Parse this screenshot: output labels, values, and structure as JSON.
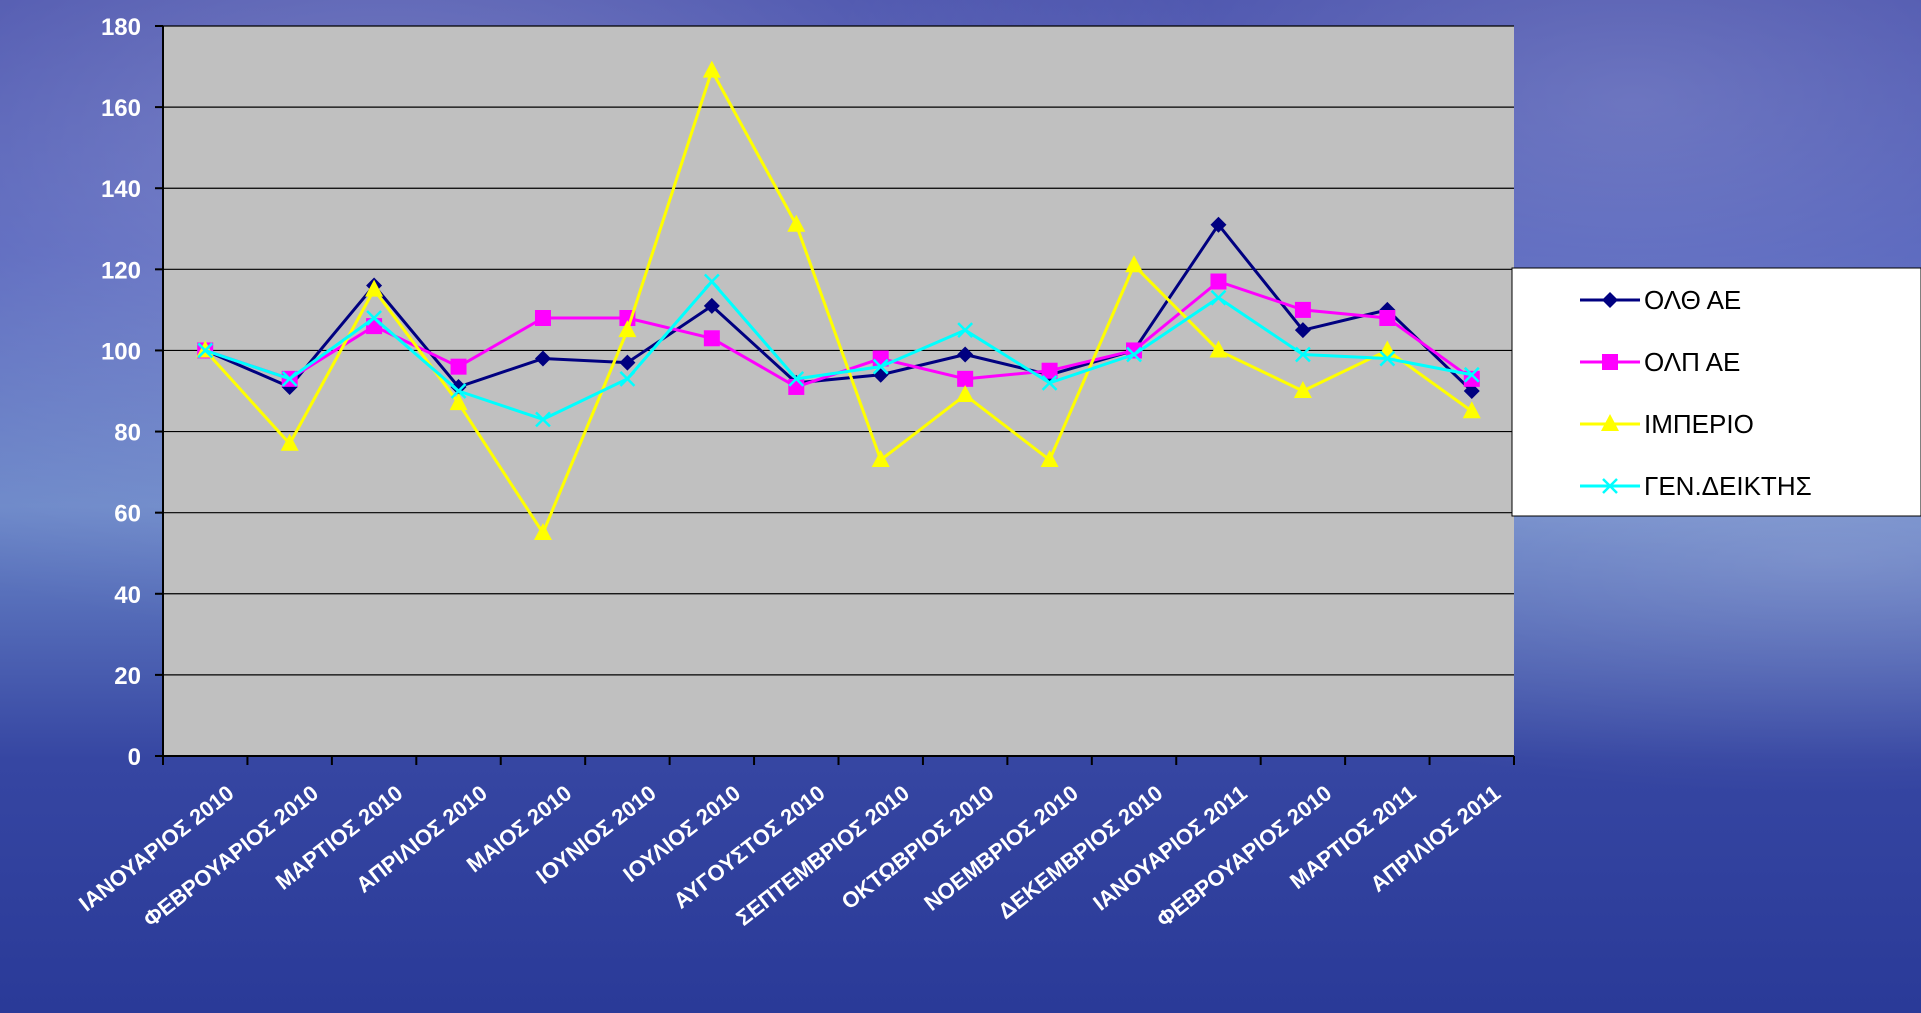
{
  "chart_data": {
    "type": "line",
    "title": "",
    "xlabel": "",
    "ylabel": "",
    "ylim": [
      0,
      180
    ],
    "yticks": [
      0,
      20,
      40,
      60,
      80,
      100,
      120,
      140,
      160,
      180
    ],
    "grid": true,
    "legend_position": "right",
    "categories": [
      "ΙΑΝΟΥΑΡΙΟΣ 2010",
      "ΦΕΒΡΟΥΑΡΙΟΣ 2010",
      "ΜΑΡΤΙΟΣ 2010",
      "ΑΠΡΙΛΙΟΣ 2010",
      "ΜΑΙΟΣ 2010",
      "ΙΟΥΝΙΟΣ 2010",
      "ΙΟΥΛΙΟΣ 2010",
      "ΑΥΓΟΥΣΤΟΣ 2010",
      "ΣΕΠΤΕΜΒΡΙΟΣ 2010",
      "ΟΚΤΩΒΡΙΟΣ 2010",
      "ΝΟΕΜΒΡΙΟΣ 2010",
      "ΔΕΚΕΜΒΡΙΟΣ 2010",
      "ΙΑΝΟΥΑΡΙΟΣ 2011",
      "ΦΕΒΡΟΥΑΡΙΟΣ 2010",
      "ΜΑΡΤΙΟΣ 2011",
      "ΑΠΡΙΛΙΟΣ 2011"
    ],
    "series": [
      {
        "name": "ΟΛΘ ΑΕ",
        "color": "#000080",
        "marker": "diamond",
        "values": [
          100,
          91,
          116,
          91,
          98,
          97,
          111,
          92,
          94,
          99,
          94,
          100,
          131,
          105,
          110,
          90
        ]
      },
      {
        "name": "ΟΛΠ ΑΕ",
        "color": "#ff00ff",
        "marker": "square",
        "values": [
          100,
          93,
          106,
          96,
          108,
          108,
          103,
          91,
          98,
          93,
          95,
          100,
          117,
          110,
          108,
          93
        ]
      },
      {
        "name": "ΙΜΠΕΡΙΟ",
        "color": "#ffff00",
        "marker": "triangle",
        "values": [
          100,
          77,
          115,
          87,
          55,
          105,
          169,
          131,
          73,
          89,
          73,
          121,
          100,
          90,
          100,
          85
        ]
      },
      {
        "name": "ΓΕΝ.ΔΕΙΚΤΗΣ",
        "color": "#00ffff",
        "marker": "x",
        "values": [
          100,
          93,
          108,
          90,
          83,
          93,
          117,
          93,
          96,
          105,
          92,
          99,
          113,
          99,
          98,
          94
        ]
      }
    ]
  }
}
